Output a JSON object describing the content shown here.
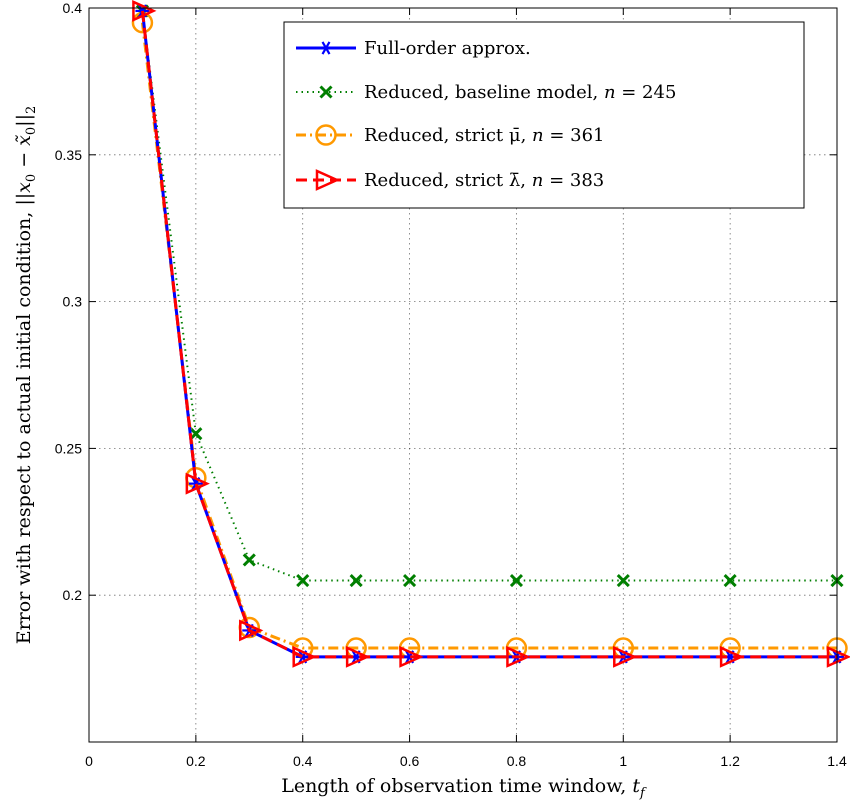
{
  "chart_data": {
    "type": "line",
    "xlabel": "Length of observation time window, t_f",
    "ylabel": "Error with respect to actual initial condition, ||x_0 − x̃_0||_2",
    "xlim": [
      0,
      1.4
    ],
    "ylim": [
      0.15,
      0.4
    ],
    "x_ticks": [
      "0",
      "0.2",
      "0.4",
      "0.6",
      "0.8",
      "1",
      "1.2",
      "1.4"
    ],
    "y_ticks": [
      "0.2",
      "0.25",
      "0.3",
      "0.35",
      "0.4"
    ],
    "grid": true,
    "legend_position": "top-right",
    "x": [
      0.1,
      0.2,
      0.3,
      0.4,
      0.5,
      0.6,
      0.8,
      1.0,
      1.2,
      1.4
    ],
    "series": [
      {
        "name": "Full-order approx.",
        "color": "#0000ff",
        "line_style": "solid",
        "marker": "asterisk",
        "values": [
          0.399,
          0.238,
          0.188,
          0.179,
          0.179,
          0.179,
          0.179,
          0.179,
          0.179,
          0.179
        ]
      },
      {
        "name": "Reduced, baseline model, n = 245",
        "color": "#007f00",
        "line_style": "dotted",
        "marker": "x",
        "values": [
          0.399,
          0.255,
          0.212,
          0.205,
          0.205,
          0.205,
          0.205,
          0.205,
          0.205,
          0.205
        ]
      },
      {
        "name": "Reduced, strict μ̄, n = 361",
        "color": "#ff9900",
        "line_style": "dashdot",
        "marker": "circle",
        "values": [
          0.395,
          0.24,
          0.189,
          0.182,
          0.182,
          0.182,
          0.182,
          0.182,
          0.182,
          0.182
        ]
      },
      {
        "name": "Reduced, strict λ̄, n = 383",
        "color": "#ff0000",
        "line_style": "dashed",
        "marker": "triangle-right",
        "values": [
          0.399,
          0.238,
          0.188,
          0.179,
          0.179,
          0.179,
          0.179,
          0.179,
          0.179,
          0.179
        ]
      }
    ]
  }
}
